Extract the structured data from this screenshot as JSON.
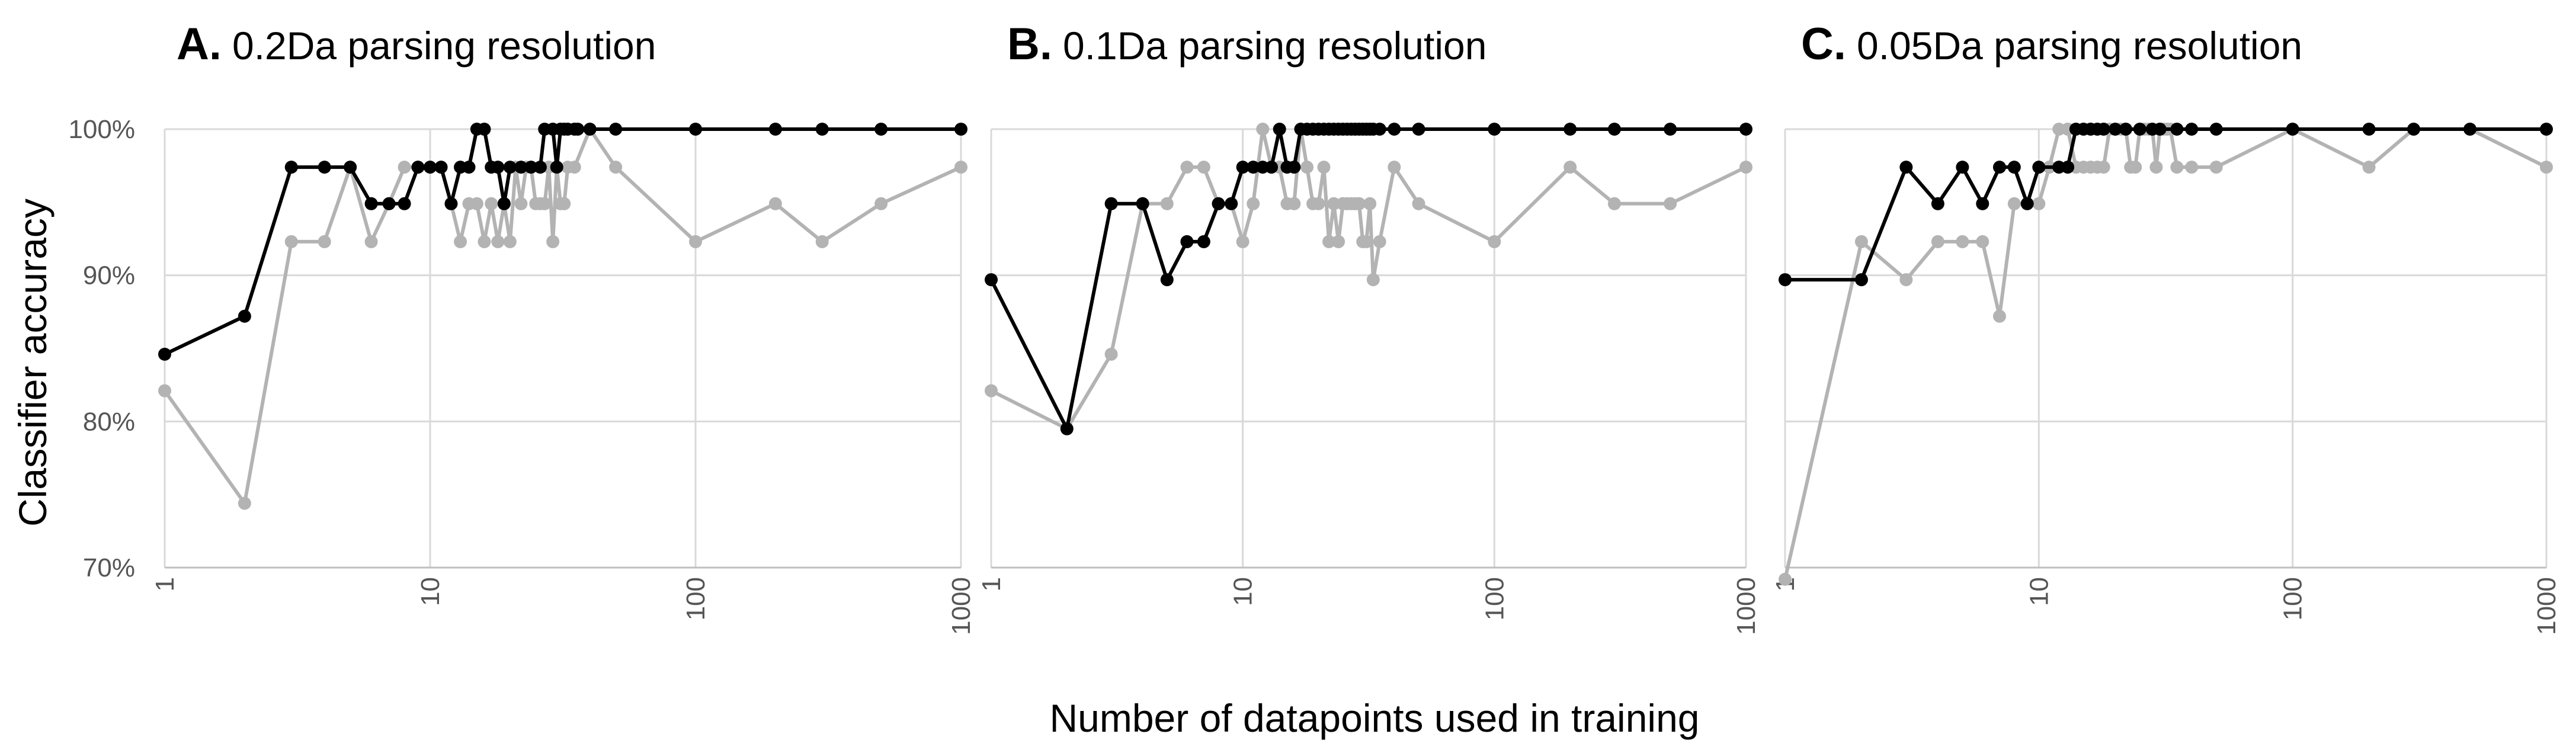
{
  "figure": {
    "ylabel": "Classifier accuracy",
    "xlabel": "Number of datapoints used in training"
  },
  "chart_data": [
    {
      "type": "line",
      "panel_letter": "A.",
      "title": "0.2Da parsing resolution",
      "x_scale": "log",
      "xlim": [
        1,
        1000
      ],
      "ylim": [
        70,
        100
      ],
      "x_ticks": [
        "1",
        "10",
        "100",
        "1000"
      ],
      "y_ticks": [
        "70%",
        "80%",
        "90%",
        "100%"
      ],
      "grid": true,
      "series": [
        {
          "color": "#000000",
          "points": [
            [
              1,
              84.6
            ],
            [
              2,
              87.2
            ],
            [
              3,
              97.4
            ],
            [
              4,
              97.4
            ],
            [
              5,
              97.4
            ],
            [
              6,
              94.9
            ],
            [
              7,
              94.9
            ],
            [
              8,
              94.9
            ],
            [
              9,
              97.4
            ],
            [
              10,
              97.4
            ],
            [
              11,
              97.4
            ],
            [
              12,
              94.9
            ],
            [
              13,
              97.4
            ],
            [
              14,
              97.4
            ],
            [
              15,
              100
            ],
            [
              16,
              100
            ],
            [
              17,
              97.4
            ],
            [
              18,
              97.4
            ],
            [
              19,
              94.9
            ],
            [
              20,
              97.4
            ],
            [
              22,
              97.4
            ],
            [
              24,
              97.4
            ],
            [
              26,
              97.4
            ],
            [
              27,
              100
            ],
            [
              29,
              100
            ],
            [
              30,
              97.4
            ],
            [
              31,
              100
            ],
            [
              32,
              100
            ],
            [
              33,
              100
            ],
            [
              35,
              100
            ],
            [
              36,
              100
            ],
            [
              40,
              100
            ],
            [
              50,
              100
            ],
            [
              100,
              100
            ],
            [
              200,
              100
            ],
            [
              300,
              100
            ],
            [
              500,
              100
            ],
            [
              1000,
              100
            ]
          ]
        },
        {
          "color": "#b3b3b3",
          "points": [
            [
              1,
              82.1
            ],
            [
              2,
              74.4
            ],
            [
              3,
              92.3
            ],
            [
              4,
              92.3
            ],
            [
              5,
              97.4
            ],
            [
              6,
              92.3
            ],
            [
              7,
              94.9
            ],
            [
              8,
              97.4
            ],
            [
              9,
              97.4
            ],
            [
              10,
              97.4
            ],
            [
              11,
              97.4
            ],
            [
              12,
              94.9
            ],
            [
              13,
              92.3
            ],
            [
              14,
              94.9
            ],
            [
              15,
              94.9
            ],
            [
              16,
              92.3
            ],
            [
              17,
              94.9
            ],
            [
              18,
              92.3
            ],
            [
              19,
              94.9
            ],
            [
              20,
              92.3
            ],
            [
              21,
              97.4
            ],
            [
              22,
              94.9
            ],
            [
              23,
              97.4
            ],
            [
              24,
              97.4
            ],
            [
              25,
              94.9
            ],
            [
              26,
              94.9
            ],
            [
              27,
              94.9
            ],
            [
              28,
              97.4
            ],
            [
              29,
              92.3
            ],
            [
              30,
              97.4
            ],
            [
              31,
              94.9
            ],
            [
              32,
              94.9
            ],
            [
              33,
              97.4
            ],
            [
              35,
              97.4
            ],
            [
              40,
              100
            ],
            [
              50,
              97.4
            ],
            [
              100,
              92.3
            ],
            [
              200,
              94.9
            ],
            [
              300,
              92.3
            ],
            [
              500,
              94.9
            ],
            [
              1000,
              97.4
            ]
          ]
        }
      ]
    },
    {
      "type": "line",
      "panel_letter": "B.",
      "title": "0.1Da parsing resolution",
      "x_scale": "log",
      "xlim": [
        1,
        1000
      ],
      "ylim": [
        70,
        100
      ],
      "x_ticks": [
        "1",
        "10",
        "100",
        "1000"
      ],
      "y_ticks": [
        "70%",
        "80%",
        "90%",
        "100%"
      ],
      "grid": true,
      "series": [
        {
          "color": "#000000",
          "points": [
            [
              1,
              89.7
            ],
            [
              2,
              79.5
            ],
            [
              3,
              94.9
            ],
            [
              4,
              94.9
            ],
            [
              5,
              89.7
            ],
            [
              6,
              92.3
            ],
            [
              7,
              92.3
            ],
            [
              8,
              94.9
            ],
            [
              9,
              94.9
            ],
            [
              10,
              97.4
            ],
            [
              11,
              97.4
            ],
            [
              12,
              97.4
            ],
            [
              13,
              97.4
            ],
            [
              14,
              100
            ],
            [
              15,
              97.4
            ],
            [
              16,
              97.4
            ],
            [
              17,
              100
            ],
            [
              18,
              100
            ],
            [
              19,
              100
            ],
            [
              20,
              100
            ],
            [
              21,
              100
            ],
            [
              22,
              100
            ],
            [
              23,
              100
            ],
            [
              24,
              100
            ],
            [
              25,
              100
            ],
            [
              26,
              100
            ],
            [
              27,
              100
            ],
            [
              28,
              100
            ],
            [
              29,
              100
            ],
            [
              30,
              100
            ],
            [
              31,
              100
            ],
            [
              32,
              100
            ],
            [
              33,
              100
            ],
            [
              35,
              100
            ],
            [
              40,
              100
            ],
            [
              50,
              100
            ],
            [
              100,
              100
            ],
            [
              200,
              100
            ],
            [
              300,
              100
            ],
            [
              500,
              100
            ],
            [
              1000,
              100
            ]
          ]
        },
        {
          "color": "#b3b3b3",
          "points": [
            [
              1,
              82.1
            ],
            [
              2,
              79.5
            ],
            [
              3,
              84.6
            ],
            [
              4,
              94.9
            ],
            [
              5,
              94.9
            ],
            [
              6,
              97.4
            ],
            [
              7,
              97.4
            ],
            [
              8,
              94.9
            ],
            [
              9,
              94.9
            ],
            [
              10,
              92.3
            ],
            [
              11,
              94.9
            ],
            [
              12,
              100
            ],
            [
              13,
              97.4
            ],
            [
              14,
              97.4
            ],
            [
              15,
              94.9
            ],
            [
              16,
              94.9
            ],
            [
              17,
              100
            ],
            [
              18,
              97.4
            ],
            [
              19,
              94.9
            ],
            [
              20,
              94.9
            ],
            [
              21,
              97.4
            ],
            [
              22,
              92.3
            ],
            [
              23,
              94.9
            ],
            [
              24,
              92.3
            ],
            [
              25,
              94.9
            ],
            [
              26,
              94.9
            ],
            [
              27,
              94.9
            ],
            [
              28,
              94.9
            ],
            [
              29,
              94.9
            ],
            [
              30,
              92.3
            ],
            [
              31,
              92.3
            ],
            [
              32,
              94.9
            ],
            [
              33,
              89.7
            ],
            [
              35,
              92.3
            ],
            [
              40,
              97.4
            ],
            [
              50,
              94.9
            ],
            [
              100,
              92.3
            ],
            [
              200,
              97.4
            ],
            [
              300,
              94.9
            ],
            [
              500,
              94.9
            ],
            [
              1000,
              97.4
            ]
          ]
        }
      ]
    },
    {
      "type": "line",
      "panel_letter": "C.",
      "title": "0.05Da parsing resolution",
      "x_scale": "log",
      "xlim": [
        1,
        1000
      ],
      "ylim": [
        70,
        100
      ],
      "x_ticks": [
        "1",
        "10",
        "100",
        "1000"
      ],
      "y_ticks": [
        "70%",
        "80%",
        "90%",
        "100%"
      ],
      "grid": true,
      "series": [
        {
          "color": "#000000",
          "points": [
            [
              1,
              89.7
            ],
            [
              2,
              89.7
            ],
            [
              3,
              97.4
            ],
            [
              4,
              94.9
            ],
            [
              5,
              97.4
            ],
            [
              6,
              94.9
            ],
            [
              7,
              97.4
            ],
            [
              8,
              97.4
            ],
            [
              9,
              94.9
            ],
            [
              10,
              97.4
            ],
            [
              12,
              97.4
            ],
            [
              13,
              97.4
            ],
            [
              14,
              100
            ],
            [
              15,
              100
            ],
            [
              16,
              100
            ],
            [
              17,
              100
            ],
            [
              18,
              100
            ],
            [
              20,
              100
            ],
            [
              22,
              100
            ],
            [
              25,
              100
            ],
            [
              28,
              100
            ],
            [
              30,
              100
            ],
            [
              35,
              100
            ],
            [
              40,
              100
            ],
            [
              50,
              100
            ],
            [
              100,
              100
            ],
            [
              200,
              100
            ],
            [
              300,
              100
            ],
            [
              500,
              100
            ],
            [
              1000,
              100
            ]
          ]
        },
        {
          "color": "#b3b3b3",
          "points": [
            [
              1,
              69.2
            ],
            [
              2,
              92.3
            ],
            [
              3,
              89.7
            ],
            [
              4,
              92.3
            ],
            [
              5,
              92.3
            ],
            [
              6,
              92.3
            ],
            [
              7,
              87.2
            ],
            [
              8,
              94.9
            ],
            [
              9,
              94.9
            ],
            [
              10,
              94.9
            ],
            [
              11,
              97.4
            ],
            [
              12,
              100
            ],
            [
              13,
              100
            ],
            [
              14,
              97.4
            ],
            [
              15,
              97.4
            ],
            [
              16,
              97.4
            ],
            [
              17,
              97.4
            ],
            [
              18,
              97.4
            ],
            [
              19,
              100
            ],
            [
              20,
              100
            ],
            [
              21,
              100
            ],
            [
              22,
              100
            ],
            [
              23,
              97.4
            ],
            [
              24,
              97.4
            ],
            [
              25,
              100
            ],
            [
              26,
              100
            ],
            [
              27,
              100
            ],
            [
              28,
              100
            ],
            [
              29,
              97.4
            ],
            [
              30,
              100
            ],
            [
              31,
              100
            ],
            [
              32,
              100
            ],
            [
              33,
              100
            ],
            [
              35,
              97.4
            ],
            [
              40,
              97.4
            ],
            [
              50,
              97.4
            ],
            [
              100,
              100
            ],
            [
              200,
              97.4
            ],
            [
              300,
              100
            ],
            [
              500,
              100
            ],
            [
              1000,
              97.4
            ]
          ]
        }
      ]
    }
  ]
}
